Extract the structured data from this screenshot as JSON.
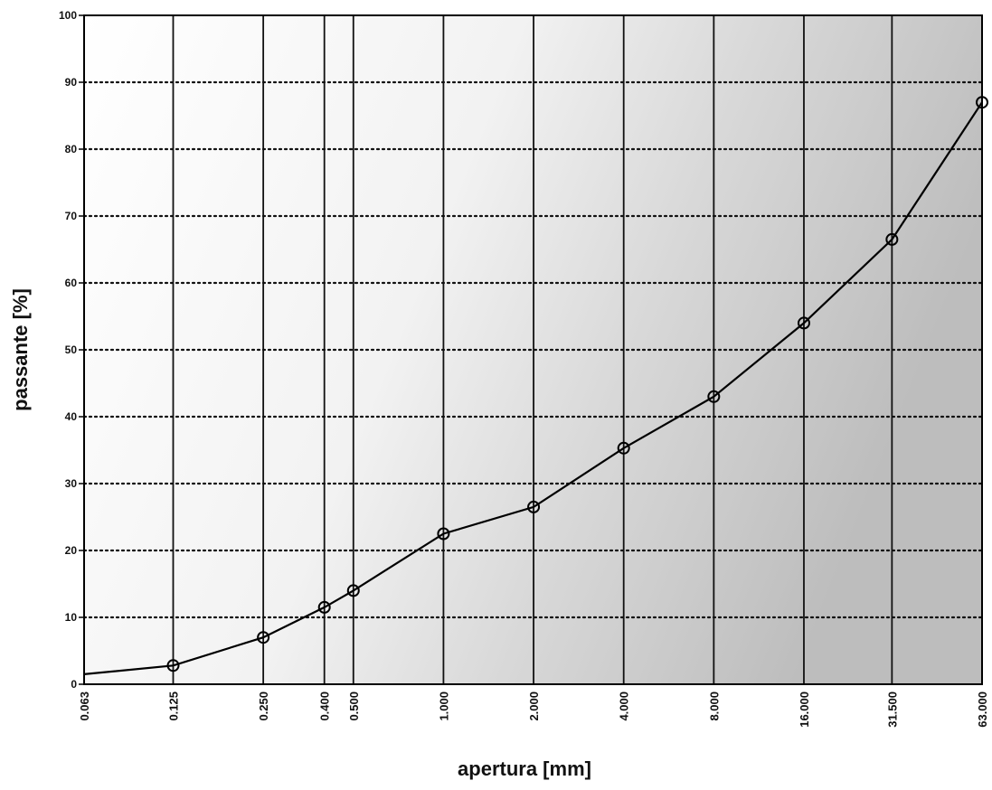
{
  "chart_data": {
    "type": "line",
    "title": "",
    "xlabel": "apertura [mm]",
    "ylabel": "passante [%]",
    "x_scale": "log",
    "x_ticks": [
      "0.063",
      "0.125",
      "0.250",
      "0.400",
      "0.500",
      "1.000",
      "2.000",
      "4.000",
      "8.000",
      "16.000",
      "31.500",
      "63.000"
    ],
    "x_tick_values": [
      0.063,
      0.125,
      0.25,
      0.4,
      0.5,
      1,
      2,
      4,
      8,
      16,
      31.5,
      63
    ],
    "y_ticks": [
      "0",
      "10",
      "20",
      "30",
      "40",
      "50",
      "60",
      "70",
      "80",
      "90",
      "100"
    ],
    "ylim": [
      0,
      100
    ],
    "xlim": [
      0.063,
      63
    ],
    "grid": {
      "vertical": "solid",
      "horizontal": "dotted"
    },
    "series": [
      {
        "x": [
          0.063,
          0.125,
          0.25,
          0.4,
          0.5,
          1,
          2,
          4,
          8,
          16,
          31.5,
          63
        ],
        "y": [
          1.5,
          2.8,
          7,
          11.5,
          14,
          22.5,
          26.5,
          35.3,
          43,
          54,
          66.5,
          87
        ]
      }
    ],
    "marker_color": "#000000",
    "line_color": "#000000"
  }
}
